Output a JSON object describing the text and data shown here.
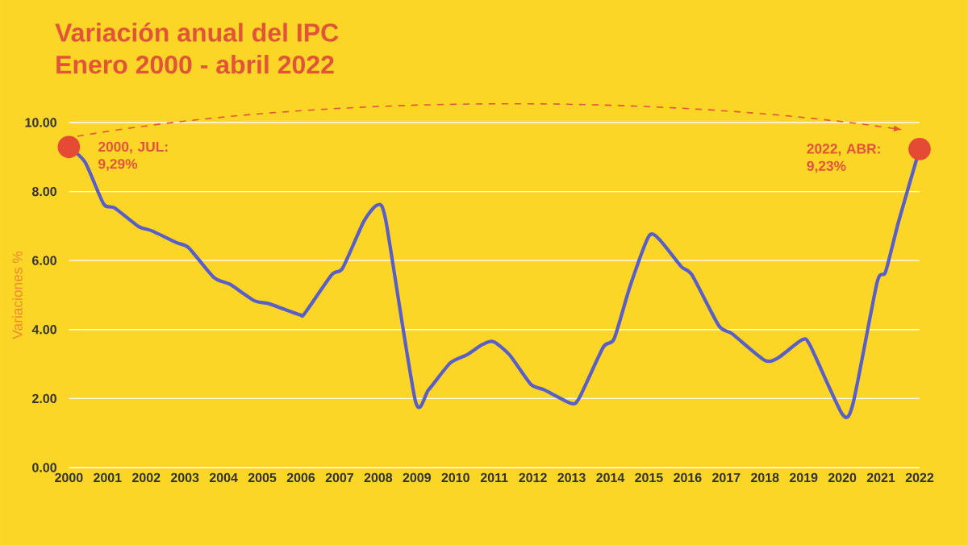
{
  "chart_data": {
    "type": "line",
    "title": "Variación anual del IPC",
    "subtitle": "Enero 2000 - abril 2022",
    "ylabel": "Variaciones %",
    "x": [
      2000,
      2000.42,
      2000.9,
      2001.18,
      2001.8,
      2002.15,
      2002.78,
      2003.1,
      2003.75,
      2004.17,
      2004.79,
      2005.2,
      2005.97,
      2006.1,
      2006.8,
      2007.08,
      2007.63,
      2007.98,
      2008.2,
      2008.96,
      2009.3,
      2009.86,
      2010.28,
      2010.7,
      2010.98,
      2011.4,
      2011.95,
      2012.3,
      2012.99,
      2013.2,
      2013.82,
      2014.1,
      2014.52,
      2015.0,
      2015.28,
      2015.84,
      2016.11,
      2016.81,
      2017.15,
      2017.99,
      2018.34,
      2018.96,
      2019.17,
      2020.0,
      2020.28,
      2020.9,
      2021.12,
      2021.46,
      2022
    ],
    "series": [
      {
        "color": "#5a5fc8",
        "values": [
          9.29,
          8.85,
          7.64,
          7.53,
          6.99,
          6.86,
          6.52,
          6.37,
          5.51,
          5.31,
          4.84,
          4.74,
          4.43,
          4.47,
          5.59,
          5.78,
          7.14,
          7.61,
          7.14,
          1.94,
          2.25,
          3.03,
          3.26,
          3.57,
          3.65,
          3.26,
          2.41,
          2.25,
          1.86,
          2.02,
          3.49,
          3.73,
          5.28,
          6.71,
          6.6,
          5.82,
          5.59,
          4.11,
          3.88,
          3.11,
          3.18,
          3.7,
          3.54,
          1.55,
          1.86,
          5.36,
          5.67,
          7.14,
          9.23
        ]
      }
    ],
    "xlim": [
      2000,
      2022
    ],
    "xticks": [
      2000,
      2001,
      2002,
      2003,
      2004,
      2005,
      2006,
      2007,
      2008,
      2009,
      2010,
      2011,
      2012,
      2013,
      2014,
      2015,
      2016,
      2017,
      2018,
      2019,
      2020,
      2021,
      2022
    ],
    "ylim": [
      0,
      10
    ],
    "yticks": [
      {
        "value": 0,
        "label": "0.00"
      },
      {
        "value": 2,
        "label": "2.00"
      },
      {
        "value": 4,
        "label": "4.00"
      },
      {
        "value": 6,
        "label": "6.00"
      },
      {
        "value": 8,
        "label": "8.00"
      },
      {
        "value": 10,
        "label": "10.00"
      }
    ],
    "grid": "y",
    "marker": "none",
    "line_style": "solid",
    "annotations": [
      {
        "text": "2000, JUL: 9,29%",
        "x": 2000,
        "y": 9.29
      },
      {
        "text": "2022, ABR: 9,23%",
        "x": 2022,
        "y": 9.23
      }
    ]
  }
}
